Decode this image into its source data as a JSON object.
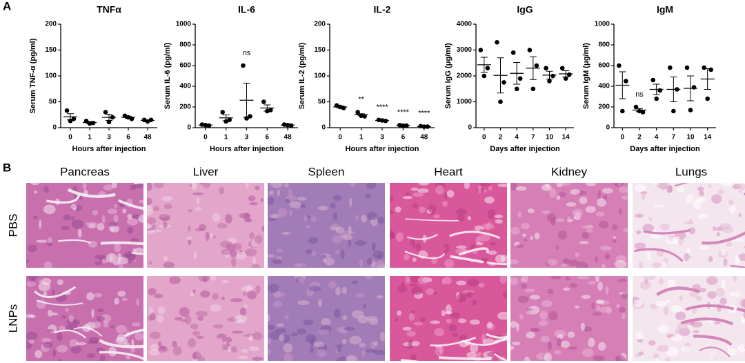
{
  "panel_labels": [
    "A",
    "B"
  ],
  "chart_data": [
    {
      "type": "scatter",
      "title": "TNFα",
      "x_label": "Hours after injection",
      "y_label": "Serum TNF-α (pg/ml)",
      "categories": [
        "0",
        "1",
        "3",
        "6",
        "48"
      ],
      "points": [
        [
          33,
          17,
          13
        ],
        [
          13,
          9,
          8
        ],
        [
          30,
          20,
          11
        ],
        [
          23,
          17,
          20
        ],
        [
          15,
          15,
          12
        ]
      ],
      "means": [
        21,
        10,
        20,
        20,
        14
      ],
      "errors": [
        6,
        2,
        6,
        2,
        1
      ],
      "annotations": [
        null,
        null,
        null,
        null,
        null
      ],
      "ylim": [
        0,
        200
      ],
      "yticks": [
        0,
        50,
        100,
        150,
        200
      ],
      "color": "#000000"
    },
    {
      "type": "scatter",
      "title": "IL-6",
      "x_label": "Hours after injection",
      "y_label": "Serum IL-6 (pg/ml)",
      "categories": [
        "0",
        "1",
        "3",
        "6",
        "48"
      ],
      "points": [
        [
          30,
          20,
          25
        ],
        [
          150,
          75,
          60
        ],
        [
          600,
          110,
          90
        ],
        [
          250,
          170,
          160
        ],
        [
          30,
          20,
          25
        ]
      ],
      "means": [
        25,
        95,
        265,
        190,
        25
      ],
      "errors": [
        3,
        28,
        165,
        30,
        3
      ],
      "annotations": [
        null,
        null,
        "ns",
        null,
        null
      ],
      "ylim": [
        0,
        1000
      ],
      "yticks": [
        0,
        200,
        400,
        600,
        800,
        1000
      ],
      "color": "#000000"
    },
    {
      "type": "scatter",
      "title": "IL-2",
      "x_label": "Hours after injection",
      "y_label": "Serum IL-2 (pg/ml)",
      "categories": [
        "0",
        "1",
        "3",
        "6",
        "48"
      ],
      "points": [
        [
          43,
          38,
          40
        ],
        [
          30,
          22,
          23
        ],
        [
          15,
          13,
          14
        ],
        [
          5,
          4,
          4
        ],
        [
          3,
          2,
          2
        ]
      ],
      "means": [
        40,
        25,
        14,
        4,
        2
      ],
      "errors": [
        2,
        2,
        1,
        0.5,
        0.4
      ],
      "annotations": [
        null,
        "**",
        "****",
        "****",
        "****"
      ],
      "ylim": [
        0,
        200
      ],
      "yticks": [
        0,
        50,
        100,
        150,
        200
      ],
      "color": "#000000"
    },
    {
      "type": "scatter",
      "title": "IgG",
      "x_label": "Days after injection",
      "y_label": "Serum IgG (μg/ml)",
      "categories": [
        "0",
        "2",
        "4",
        "7",
        "10",
        "14"
      ],
      "points": [
        [
          3000,
          2300,
          2000
        ],
        [
          3300,
          1750,
          1000
        ],
        [
          2900,
          1900,
          1500
        ],
        [
          3000,
          2400,
          1500
        ],
        [
          2300,
          2000,
          1800
        ],
        [
          2300,
          2050,
          1900
        ]
      ],
      "means": [
        2430,
        2020,
        2100,
        2300,
        2030,
        2080
      ],
      "errors": [
        290,
        680,
        420,
        440,
        150,
        120
      ],
      "annotations": [
        null,
        null,
        null,
        null,
        null,
        null
      ],
      "ylim": [
        0,
        4000
      ],
      "yticks": [
        0,
        1000,
        2000,
        3000,
        4000
      ],
      "color": "#000000"
    },
    {
      "type": "scatter",
      "title": "IgM",
      "x_label": "Days after injection",
      "y_label": "Serum IgM (μg/ml)",
      "categories": [
        "0",
        "2",
        "4",
        "7",
        "10",
        "14"
      ],
      "points": [
        [
          600,
          450,
          160
        ],
        [
          200,
          150,
          160
        ],
        [
          460,
          360,
          280
        ],
        [
          580,
          370,
          160
        ],
        [
          580,
          390,
          170
        ],
        [
          580,
          560,
          280
        ]
      ],
      "means": [
        410,
        170,
        370,
        370,
        380,
        470
      ],
      "errors": [
        130,
        15,
        50,
        120,
        120,
        100
      ],
      "annotations": [
        null,
        "ns",
        null,
        null,
        null,
        null
      ],
      "ylim": [
        0,
        1000
      ],
      "yticks": [
        0,
        200,
        400,
        600,
        800,
        1000
      ],
      "color": "#000000"
    }
  ],
  "histology": {
    "columns": [
      "Pancreas",
      "Liver",
      "Spleen",
      "Heart",
      "Kidney",
      "Lungs"
    ],
    "rows": [
      "PBS",
      "LNPs"
    ]
  }
}
